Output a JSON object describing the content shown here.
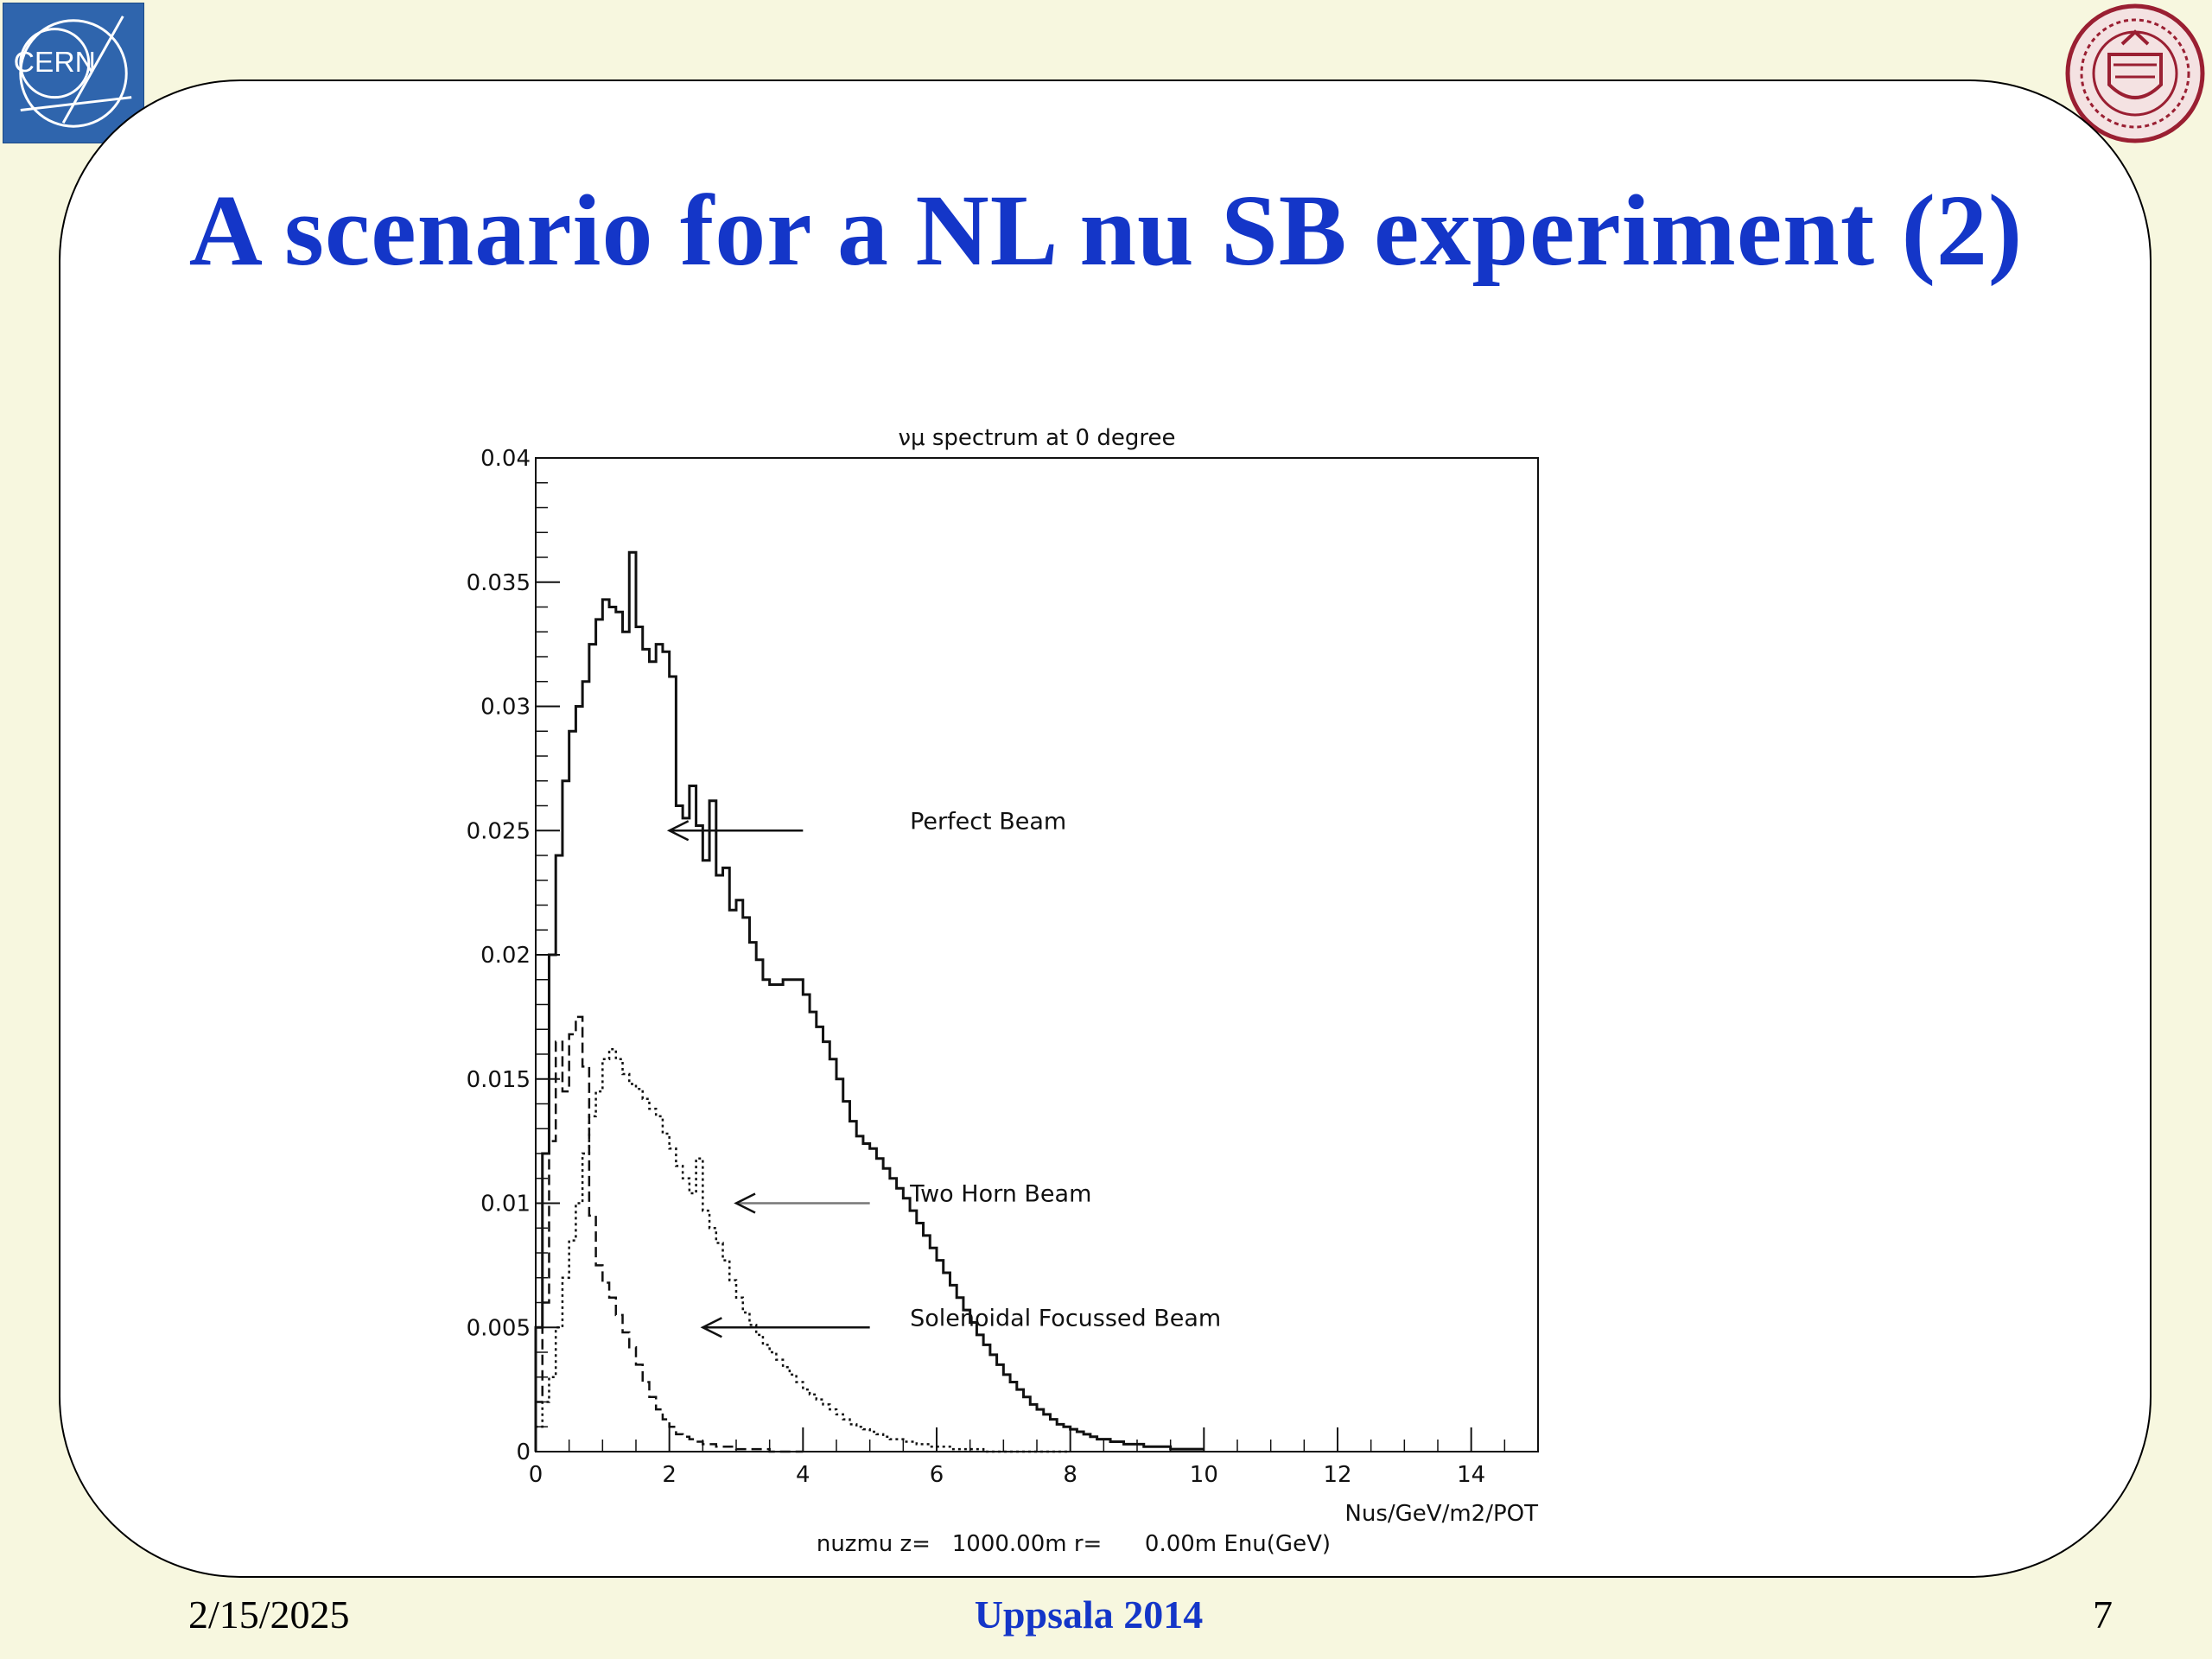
{
  "logos": {
    "left_icon": "cern-logo",
    "left_text": "CERN",
    "left_color": "#2f65ad",
    "right_icon": "university-seal",
    "right_color": "#9a1f32"
  },
  "slide": {
    "title": "A scenario for a NL nu SB experiment (2)",
    "title_color": "#1436c8"
  },
  "footer": {
    "date": "2/15/2025",
    "center": "Uppsala 2014",
    "page": "7"
  },
  "chart_data": {
    "type": "line",
    "style": "step histogram",
    "title": "νμ spectrum at 0 degree",
    "ylabel": "Nus/GeV/m2/POT",
    "xlabel": "nuzmu z=   1000.00m r=      0.00m Enu(GeV)",
    "xlim": [
      0,
      15
    ],
    "ylim": [
      0,
      0.04
    ],
    "x_ticks": [
      "0",
      "2",
      "4",
      "6",
      "8",
      "10",
      "12",
      "14"
    ],
    "y_ticks": [
      "0",
      "0.005",
      "0.01",
      "0.015",
      "0.02",
      "0.025",
      "0.03",
      "0.035",
      "0.04"
    ],
    "grid": false,
    "bin_width": 0.1,
    "series": [
      {
        "name": "Perfect Beam",
        "line": "solid",
        "x_start": 0.0,
        "values": [
          0.005,
          0.012,
          0.02,
          0.024,
          0.027,
          0.029,
          0.03,
          0.031,
          0.0325,
          0.0335,
          0.0343,
          0.034,
          0.0338,
          0.033,
          0.0362,
          0.0332,
          0.0323,
          0.0318,
          0.0325,
          0.0322,
          0.0312,
          0.026,
          0.0255,
          0.0268,
          0.0252,
          0.0238,
          0.0262,
          0.0232,
          0.0235,
          0.0218,
          0.0222,
          0.0215,
          0.0205,
          0.0198,
          0.019,
          0.0188,
          0.0188,
          0.019,
          0.019,
          0.019,
          0.0184,
          0.0177,
          0.0171,
          0.0165,
          0.0158,
          0.015,
          0.0141,
          0.0133,
          0.0127,
          0.0124,
          0.0122,
          0.0118,
          0.0114,
          0.011,
          0.0106,
          0.0102,
          0.0097,
          0.0092,
          0.0087,
          0.0082,
          0.0077,
          0.0072,
          0.0067,
          0.0062,
          0.0057,
          0.0052,
          0.0047,
          0.0043,
          0.0039,
          0.0035,
          0.0031,
          0.0028,
          0.0025,
          0.0022,
          0.0019,
          0.0017,
          0.0015,
          0.0013,
          0.0011,
          0.001,
          0.0009,
          0.0008,
          0.0007,
          0.0006,
          0.0005,
          0.0005,
          0.0004,
          0.0004,
          0.0003,
          0.0003,
          0.0003,
          0.0002,
          0.0002,
          0.0002,
          0.0002,
          0.0001,
          0.0001,
          0.0001,
          0.0001,
          0.0001
        ]
      },
      {
        "name": "Two Horn Beam",
        "line": "dotted",
        "x_start": 0.0,
        "values": [
          0.001,
          0.002,
          0.003,
          0.005,
          0.007,
          0.0085,
          0.01,
          0.012,
          0.0135,
          0.0145,
          0.0158,
          0.0162,
          0.0158,
          0.0152,
          0.0148,
          0.0146,
          0.0142,
          0.0138,
          0.0135,
          0.0128,
          0.0122,
          0.0115,
          0.011,
          0.0104,
          0.0118,
          0.0097,
          0.009,
          0.0084,
          0.0077,
          0.0069,
          0.0062,
          0.0056,
          0.0051,
          0.0047,
          0.0043,
          0.004,
          0.0037,
          0.0034,
          0.0031,
          0.0028,
          0.0025,
          0.0023,
          0.0021,
          0.0019,
          0.0017,
          0.0015,
          0.0013,
          0.0011,
          0.001,
          0.0009,
          0.0008,
          0.0007,
          0.0006,
          0.0005,
          0.0005,
          0.0004,
          0.0004,
          0.0003,
          0.0003,
          0.0002,
          0.0002,
          0.0002,
          0.0001,
          0.0001,
          0.0001,
          0.0001,
          0.0001,
          0.0,
          0.0,
          0.0,
          0.0,
          0.0,
          0.0,
          0.0,
          0.0,
          0.0,
          0.0,
          0.0,
          0.0,
          0.0
        ]
      },
      {
        "name": "Solenoidal Focussed Beam",
        "line": "dashed",
        "x_start": 0.0,
        "values": [
          0.002,
          0.006,
          0.0125,
          0.0165,
          0.0145,
          0.0168,
          0.0175,
          0.0155,
          0.0095,
          0.0075,
          0.0068,
          0.0062,
          0.0055,
          0.0048,
          0.0042,
          0.0035,
          0.0028,
          0.0022,
          0.0017,
          0.0013,
          0.001,
          0.0007,
          0.0006,
          0.0005,
          0.0004,
          0.0003,
          0.0003,
          0.0002,
          0.0002,
          0.0002,
          0.0001,
          0.0001,
          0.0001,
          0.0001,
          0.0001,
          0.0,
          0.0,
          0.0,
          0.0,
          0.0
        ]
      }
    ],
    "annotations": [
      {
        "text": "Perfect Beam",
        "arrow_to": [
          2.0,
          0.025
        ]
      },
      {
        "text": "Two Horn Beam",
        "arrow_to": [
          3.0,
          0.01
        ]
      },
      {
        "text": "Solenoidal Focussed Beam",
        "arrow_to": [
          2.5,
          0.005
        ]
      }
    ]
  }
}
